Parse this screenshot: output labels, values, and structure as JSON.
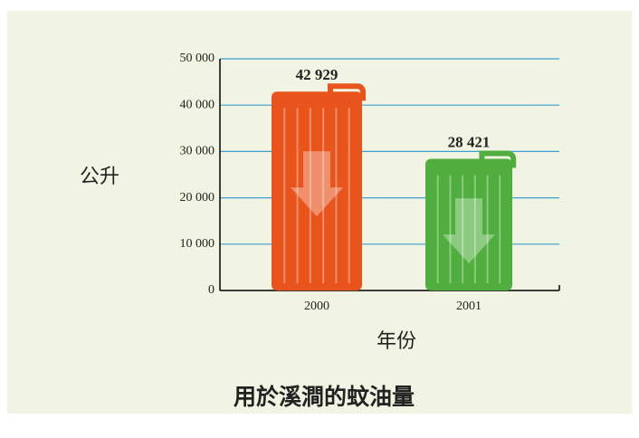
{
  "chart_data": {
    "type": "bar",
    "title": "用於溪澗的蚊油量",
    "y_label": "公升",
    "x_label": "年份",
    "categories": [
      "2000",
      "2001"
    ],
    "values": [
      42929,
      28421
    ],
    "value_labels": [
      "42 929",
      "28 421"
    ],
    "colors": [
      "#e8541c",
      "#4fae3e"
    ],
    "ylim": [
      0,
      50000
    ],
    "yticks": [
      0,
      {
        "value": 10000,
        "label": "10 000"
      },
      {
        "value": 20000,
        "label": "20 000"
      },
      {
        "value": 30000,
        "label": "30 000"
      },
      {
        "value": 40000,
        "label": "40 000"
      },
      {
        "value": 50000,
        "label": "50 000"
      }
    ],
    "grid": true
  }
}
